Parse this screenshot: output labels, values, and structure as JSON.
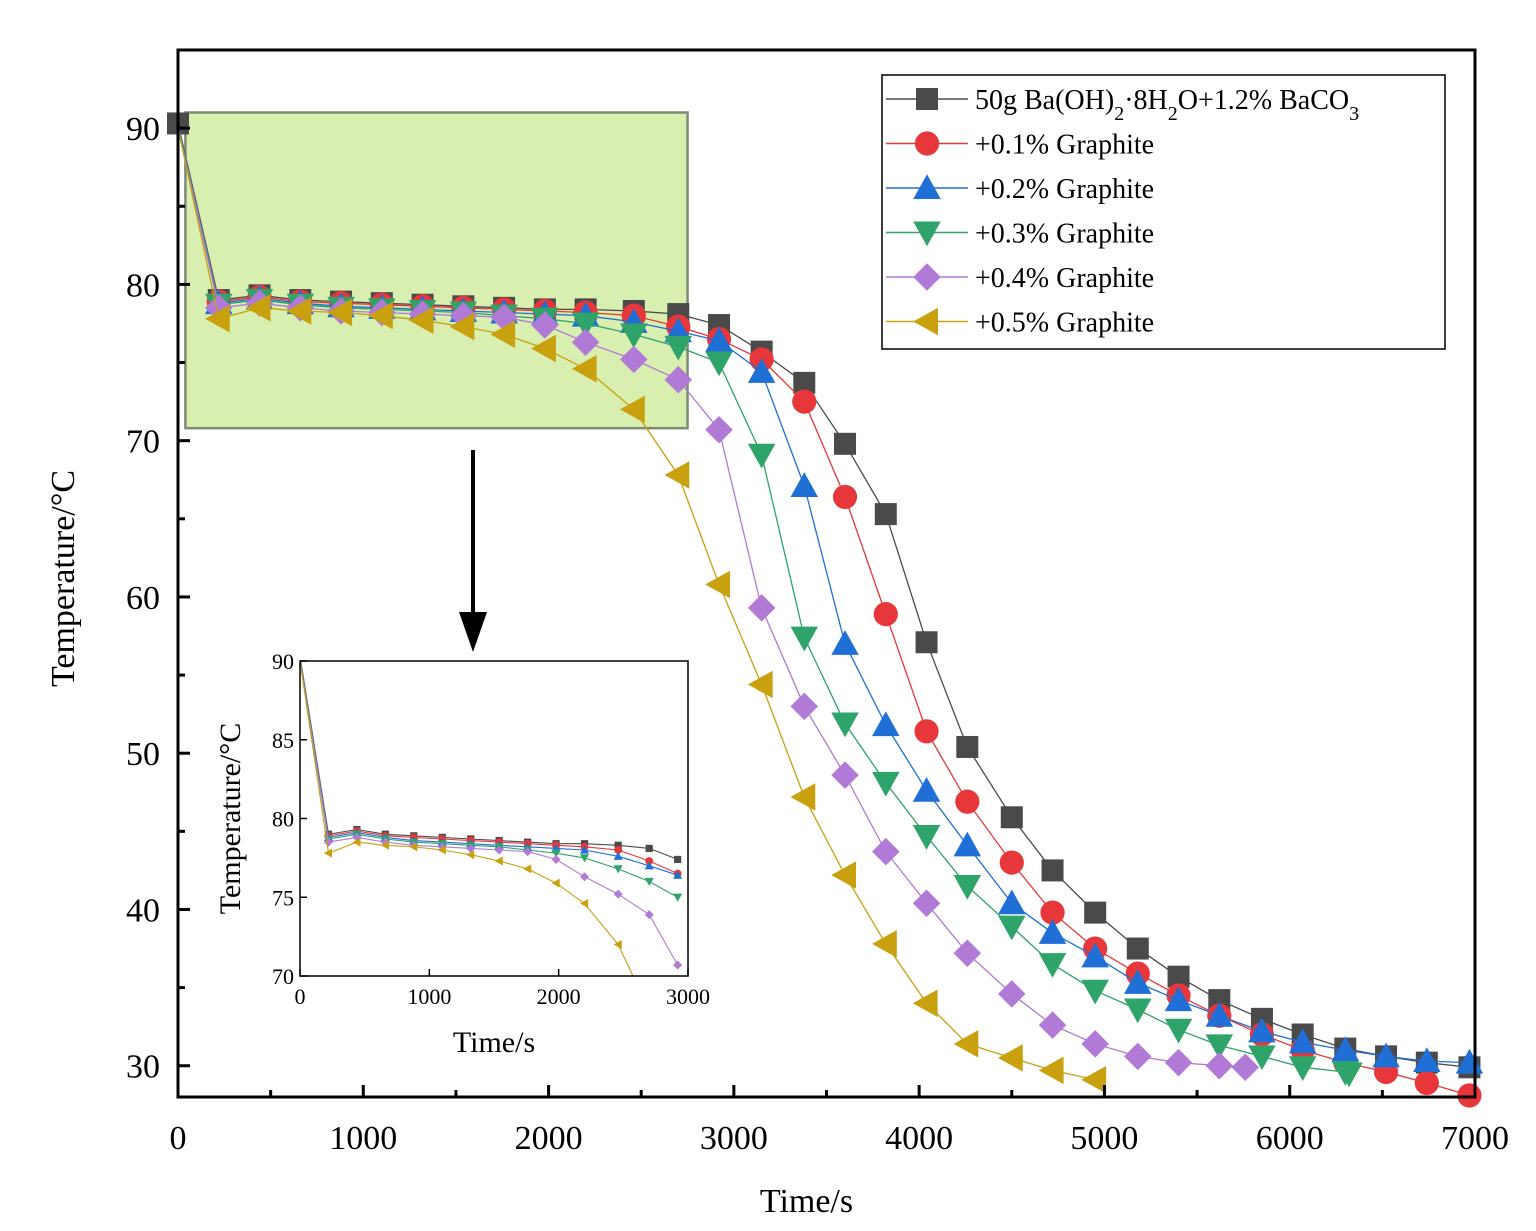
{
  "colors": {
    "s0": "#4a4a4a",
    "s1": "#e8373a",
    "s2": "#1f6fd6",
    "s3": "#2ea36a",
    "s4": "#b07ad6",
    "s5": "#c9a10e",
    "highlight_fill": "#d9efb0",
    "highlight_stroke": "#7f8a73"
  },
  "chart_data": {
    "type": "line",
    "xlabel": "Time/s",
    "ylabel": "Temperature/°C",
    "xlim": [
      0,
      7000
    ],
    "ylim": [
      28,
      95
    ],
    "x_ticks": [
      "0",
      "1000",
      "2000",
      "3000",
      "4000",
      "5000",
      "6000",
      "7000"
    ],
    "y_ticks": [
      "30",
      "40",
      "50",
      "60",
      "70",
      "80",
      "90"
    ],
    "legend_position": "top-right",
    "legend": [
      {
        "main": "50g Ba(OH)",
        "sub1": "2",
        "mid": "·8H",
        "sub2": "2",
        "mid2": "O+1.2% BaCO",
        "sub3": "3"
      },
      {
        "main": "+0.1% Graphite"
      },
      {
        "main": "+0.2% Graphite"
      },
      {
        "main": "+0.3% Graphite"
      },
      {
        "main": "+0.4% Graphite"
      },
      {
        "main": "+0.5% Graphite"
      }
    ],
    "highlight_box": {
      "x": [
        40,
        2750
      ],
      "y": [
        70.8,
        91
      ]
    },
    "series": [
      {
        "name": "50g Ba(OH)2·8H2O+1.2% BaCO3",
        "marker": "square",
        "color": "s0",
        "points": [
          [
            0,
            90.3
          ],
          [
            220,
            79
          ],
          [
            440,
            79.3
          ],
          [
            660,
            79
          ],
          [
            880,
            78.9
          ],
          [
            1100,
            78.8
          ],
          [
            1320,
            78.7
          ],
          [
            1540,
            78.6
          ],
          [
            1760,
            78.5
          ],
          [
            1980,
            78.4
          ],
          [
            2200,
            78.4
          ],
          [
            2460,
            78.3
          ],
          [
            2700,
            78.1
          ],
          [
            2920,
            77.4
          ],
          [
            3150,
            75.7
          ],
          [
            3380,
            73.7
          ],
          [
            3600,
            69.8
          ],
          [
            3820,
            65.3
          ],
          [
            4040,
            57.1
          ],
          [
            4260,
            50.4
          ],
          [
            4500,
            45.9
          ],
          [
            4720,
            42.5
          ],
          [
            4950,
            39.8
          ],
          [
            5180,
            37.5
          ],
          [
            5400,
            35.7
          ],
          [
            5620,
            34.2
          ],
          [
            5850,
            33
          ],
          [
            6070,
            32
          ],
          [
            6300,
            31.1
          ],
          [
            6520,
            30.6
          ],
          [
            6740,
            30.2
          ],
          [
            6970,
            29.9
          ]
        ]
      },
      {
        "name": "+0.1% Graphite",
        "marker": "circle",
        "color": "s1",
        "points": [
          [
            0,
            90.2
          ],
          [
            220,
            78.9
          ],
          [
            440,
            79.2
          ],
          [
            660,
            78.9
          ],
          [
            880,
            78.8
          ],
          [
            1100,
            78.7
          ],
          [
            1320,
            78.6
          ],
          [
            1540,
            78.5
          ],
          [
            1760,
            78.4
          ],
          [
            1980,
            78.3
          ],
          [
            2200,
            78.2
          ],
          [
            2460,
            78
          ],
          [
            2700,
            77.3
          ],
          [
            2920,
            76.5
          ],
          [
            3150,
            75.2
          ],
          [
            3380,
            72.5
          ],
          [
            3600,
            66.4
          ],
          [
            3820,
            58.9
          ],
          [
            4040,
            51.4
          ],
          [
            4260,
            46.9
          ],
          [
            4500,
            43
          ],
          [
            4720,
            39.8
          ],
          [
            4950,
            37.5
          ],
          [
            5180,
            35.9
          ],
          [
            5400,
            34.5
          ],
          [
            5620,
            33.2
          ],
          [
            5850,
            32
          ],
          [
            6070,
            31
          ],
          [
            6300,
            30.2
          ],
          [
            6520,
            29.6
          ],
          [
            6740,
            28.9
          ],
          [
            6970,
            28.1
          ]
        ]
      },
      {
        "name": "+0.2% Graphite",
        "marker": "triangle-up",
        "color": "s2",
        "points": [
          [
            0,
            90.2
          ],
          [
            220,
            78.8
          ],
          [
            440,
            79.1
          ],
          [
            660,
            78.8
          ],
          [
            880,
            78.6
          ],
          [
            1100,
            78.5
          ],
          [
            1320,
            78.4
          ],
          [
            1540,
            78.3
          ],
          [
            1760,
            78.2
          ],
          [
            1980,
            78.1
          ],
          [
            2200,
            78
          ],
          [
            2460,
            77.6
          ],
          [
            2700,
            77
          ],
          [
            2920,
            76.4
          ],
          [
            3150,
            74.4
          ],
          [
            3380,
            67.1
          ],
          [
            3600,
            57
          ],
          [
            3820,
            51.8
          ],
          [
            4040,
            47.6
          ],
          [
            4260,
            44.1
          ],
          [
            4500,
            40.4
          ],
          [
            4720,
            38.5
          ],
          [
            4950,
            37
          ],
          [
            5180,
            35.3
          ],
          [
            5400,
            34.2
          ],
          [
            5620,
            33.2
          ],
          [
            5850,
            32.2
          ],
          [
            6070,
            31.5
          ],
          [
            6300,
            31
          ],
          [
            6520,
            30.6
          ],
          [
            6740,
            30.3
          ],
          [
            6970,
            30.2
          ]
        ]
      },
      {
        "name": "+0.3% Graphite",
        "marker": "triangle-down",
        "color": "s3",
        "points": [
          [
            0,
            90.1
          ],
          [
            220,
            78.7
          ],
          [
            440,
            79
          ],
          [
            660,
            78.7
          ],
          [
            880,
            78.5
          ],
          [
            1100,
            78.4
          ],
          [
            1320,
            78.3
          ],
          [
            1540,
            78.2
          ],
          [
            1760,
            78
          ],
          [
            1980,
            77.8
          ],
          [
            2200,
            77.5
          ],
          [
            2460,
            76.8
          ],
          [
            2700,
            76
          ],
          [
            2920,
            75
          ],
          [
            3150,
            69.1
          ],
          [
            3380,
            57.4
          ],
          [
            3600,
            51.9
          ],
          [
            3820,
            48.1
          ],
          [
            4040,
            44.7
          ],
          [
            4260,
            41.5
          ],
          [
            4500,
            38.9
          ],
          [
            4720,
            36.5
          ],
          [
            4950,
            34.8
          ],
          [
            5180,
            33.6
          ],
          [
            5400,
            32.3
          ],
          [
            5620,
            31.3
          ],
          [
            5850,
            30.6
          ],
          [
            6070,
            29.9
          ],
          [
            6300,
            29.6
          ],
          [
            6320,
            29.5
          ]
        ]
      },
      {
        "name": "+0.4% Graphite",
        "marker": "diamond",
        "color": "s4",
        "points": [
          [
            0,
            90
          ],
          [
            220,
            78.5
          ],
          [
            440,
            78.8
          ],
          [
            660,
            78.5
          ],
          [
            880,
            78.3
          ],
          [
            1100,
            78.2
          ],
          [
            1320,
            78.1
          ],
          [
            1540,
            78
          ],
          [
            1760,
            77.9
          ],
          [
            1980,
            77.4
          ],
          [
            2200,
            76.3
          ],
          [
            2460,
            75.2
          ],
          [
            2700,
            73.9
          ],
          [
            2920,
            70.7
          ],
          [
            3150,
            59.3
          ],
          [
            3380,
            53
          ],
          [
            3600,
            48.6
          ],
          [
            3820,
            43.7
          ],
          [
            4040,
            40.4
          ],
          [
            4260,
            37.2
          ],
          [
            4500,
            34.6
          ],
          [
            4720,
            32.6
          ],
          [
            4950,
            31.4
          ],
          [
            5180,
            30.6
          ],
          [
            5400,
            30.2
          ],
          [
            5620,
            30
          ],
          [
            5760,
            29.9
          ]
        ]
      },
      {
        "name": "+0.5% Graphite",
        "marker": "triangle-left",
        "color": "s5",
        "points": [
          [
            0,
            90
          ],
          [
            220,
            77.8
          ],
          [
            440,
            78.5
          ],
          [
            660,
            78.3
          ],
          [
            880,
            78.2
          ],
          [
            1100,
            78
          ],
          [
            1320,
            77.7
          ],
          [
            1540,
            77.3
          ],
          [
            1760,
            76.8
          ],
          [
            1980,
            75.9
          ],
          [
            2200,
            74.6
          ],
          [
            2460,
            72
          ],
          [
            2700,
            67.8
          ],
          [
            2920,
            60.8
          ],
          [
            3150,
            54.4
          ],
          [
            3380,
            47.2
          ],
          [
            3600,
            42.2
          ],
          [
            3820,
            37.8
          ],
          [
            4040,
            34
          ],
          [
            4260,
            31.4
          ],
          [
            4500,
            30.5
          ],
          [
            4720,
            29.7
          ],
          [
            4950,
            29.1
          ]
        ]
      }
    ],
    "inset": {
      "xlabel": "Time/s",
      "ylabel": "Temperature/°C",
      "xlim": [
        0,
        3000
      ],
      "ylim": [
        70,
        90
      ],
      "x_ticks": [
        "0",
        "1000",
        "2000",
        "3000"
      ],
      "y_ticks": [
        "70",
        "75",
        "80",
        "85",
        "90"
      ]
    }
  }
}
